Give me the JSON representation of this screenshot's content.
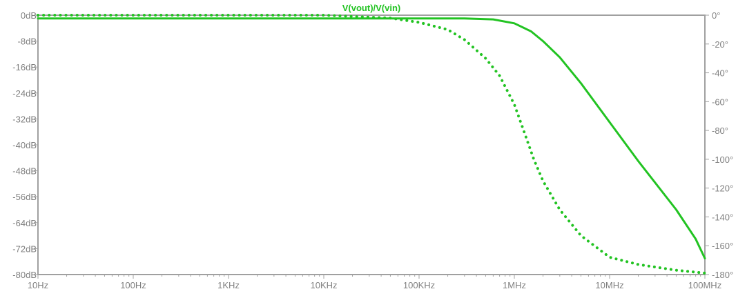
{
  "chart_data": {
    "type": "line",
    "title": "V(vout)/V(vin)",
    "x_scale": "log",
    "xlim": [
      10,
      100000000
    ],
    "x_ticks": [
      {
        "value": 10,
        "label": "10Hz"
      },
      {
        "value": 100,
        "label": "100Hz"
      },
      {
        "value": 1000,
        "label": "1KHz"
      },
      {
        "value": 10000,
        "label": "10KHz"
      },
      {
        "value": 100000,
        "label": "100KHz"
      },
      {
        "value": 1000000,
        "label": "1MHz"
      },
      {
        "value": 10000000,
        "label": "10MHz"
      },
      {
        "value": 100000000,
        "label": "100MHz"
      }
    ],
    "y_left": {
      "ylim": [
        -80,
        0
      ],
      "ticks": [
        {
          "value": 0,
          "label": "0dB"
        },
        {
          "value": -8,
          "label": "-8dB"
        },
        {
          "value": -16,
          "label": "-16dB"
        },
        {
          "value": -24,
          "label": "-24dB"
        },
        {
          "value": -32,
          "label": "-32dB"
        },
        {
          "value": -40,
          "label": "-40dB"
        },
        {
          "value": -48,
          "label": "-48dB"
        },
        {
          "value": -56,
          "label": "-56dB"
        },
        {
          "value": -64,
          "label": "-64dB"
        },
        {
          "value": -72,
          "label": "-72dB"
        },
        {
          "value": -80,
          "label": "-80dB"
        }
      ]
    },
    "y_right": {
      "ylim": [
        -180,
        0
      ],
      "ticks": [
        {
          "value": 0,
          "label": "0°"
        },
        {
          "value": -20,
          "label": "-20°"
        },
        {
          "value": -40,
          "label": "-40°"
        },
        {
          "value": -60,
          "label": "-60°"
        },
        {
          "value": -80,
          "label": "-80°"
        },
        {
          "value": -100,
          "label": "-100°"
        },
        {
          "value": -120,
          "label": "-120°"
        },
        {
          "value": -140,
          "label": "-140°"
        },
        {
          "value": -160,
          "label": "-160°"
        },
        {
          "value": -180,
          "label": "-180°"
        }
      ]
    },
    "grid": false,
    "series": [
      {
        "style": "solid",
        "axis": "left",
        "color": "#22c322",
        "x": [
          10,
          100,
          1000,
          10000,
          100000,
          300000,
          600000,
          1000000,
          1500000,
          2000000,
          3000000,
          5000000,
          10000000,
          20000000,
          50000000,
          80000000,
          100000000
        ],
        "y": [
          -1,
          -1,
          -1,
          -1,
          -1,
          -1,
          -1.3,
          -2.5,
          -5,
          -8,
          -13,
          -21,
          -33,
          -45,
          -60,
          -69,
          -75
        ]
      },
      {
        "style": "dotted",
        "axis": "right",
        "color": "#22c322",
        "x": [
          10,
          1000,
          10000,
          50000,
          100000,
          200000,
          300000,
          500000,
          700000,
          1000000,
          1300000,
          1600000,
          2000000,
          3000000,
          5000000,
          10000000,
          20000000,
          50000000,
          100000000
        ],
        "y": [
          0,
          0,
          0,
          -2,
          -5,
          -10,
          -17,
          -30,
          -42,
          -62,
          -83,
          -100,
          -115,
          -135,
          -153,
          -168,
          -173,
          -177,
          -179
        ]
      }
    ]
  }
}
